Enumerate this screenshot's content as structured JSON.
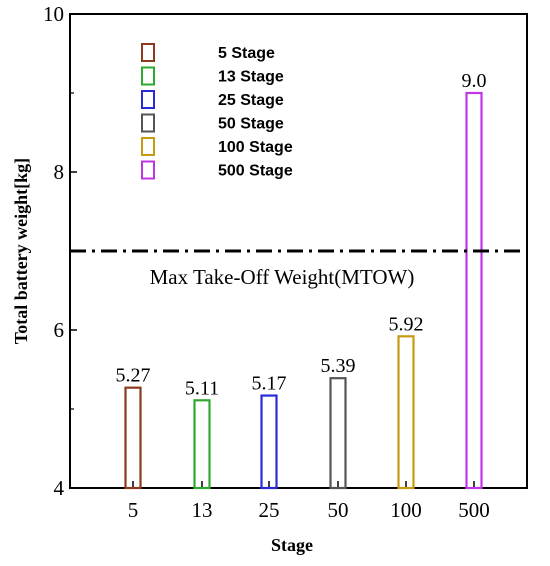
{
  "chart_data": {
    "type": "bar",
    "categories": [
      "5",
      "13",
      "25",
      "50",
      "100",
      "500"
    ],
    "values": [
      5.27,
      5.11,
      5.17,
      5.39,
      5.92,
      9.0
    ],
    "data_labels": [
      "5.27",
      "5.11",
      "5.17",
      "5.39",
      "5.92",
      "9.0"
    ],
    "colors": [
      "#8b3a1f",
      "#2ea82e",
      "#2b2bd6",
      "#555555",
      "#c89a12",
      "#c035e6"
    ],
    "xlabel": "Stage",
    "ylabel": "Total battery weight[kg]",
    "ylim": [
      4,
      10
    ],
    "yticks": [
      "4",
      "6",
      "8",
      "10"
    ],
    "legend": {
      "placement": "top-left",
      "entries": [
        "5 Stage",
        "13 Stage",
        "25 Stage",
        "50 Stage",
        "100 Stage",
        "500 Stage"
      ]
    },
    "reference_line": {
      "value": 7.0,
      "style": "dash-dot",
      "label": "Max Take-Off Weight(MTOW)"
    },
    "grid": false
  }
}
